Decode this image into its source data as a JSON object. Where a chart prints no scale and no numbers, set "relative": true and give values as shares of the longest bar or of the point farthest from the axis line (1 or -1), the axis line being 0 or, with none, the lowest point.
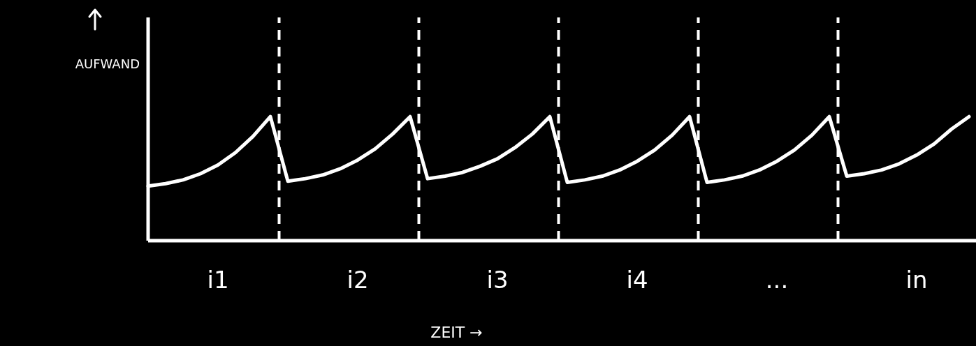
{
  "chart_data": {
    "type": "line",
    "relative": true,
    "xlabel": "ZEIT →",
    "ylabel": "AUFWAND",
    "categories": [
      null,
      null,
      null,
      null,
      "i1",
      null,
      null,
      null,
      null,
      null,
      null,
      null,
      "i2",
      null,
      null,
      null,
      null,
      null,
      null,
      null,
      "i3",
      null,
      null,
      null,
      null,
      null,
      null,
      null,
      "i4",
      null,
      null,
      null,
      null,
      null,
      null,
      null,
      "...",
      null,
      null,
      null,
      null,
      null,
      null,
      null,
      "in",
      null,
      null,
      null
    ],
    "tick_labels": "x",
    "line_style": "solid",
    "marker": "none",
    "series": [
      {
        "color": "#ffffff",
        "values": [
          0.44,
          0.46,
          0.49,
          0.54,
          0.61,
          0.71,
          0.84,
          1,
          0.48,
          0.5,
          0.53,
          0.58,
          0.65,
          0.74,
          0.86,
          1,
          0.5,
          0.52,
          0.55,
          0.6,
          0.66,
          0.75,
          0.86,
          1,
          0.47,
          0.49,
          0.52,
          0.57,
          0.64,
          0.73,
          0.85,
          1,
          0.47,
          0.49,
          0.52,
          0.57,
          0.64,
          0.73,
          0.85,
          1,
          0.52,
          0.54,
          0.57,
          0.62,
          0.69,
          0.78,
          0.9,
          1
        ]
      }
    ]
  }
}
